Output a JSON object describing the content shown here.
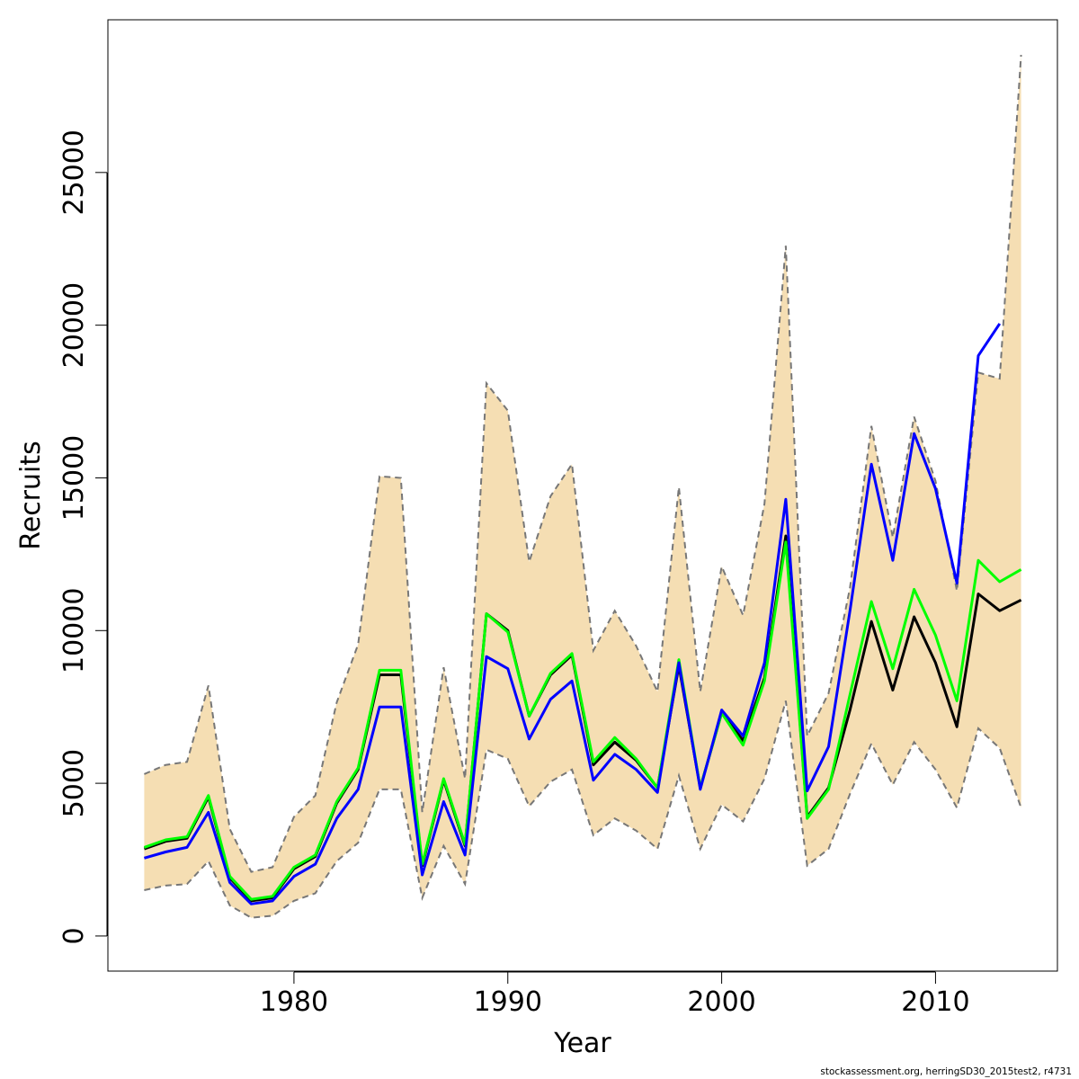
{
  "chart_data": {
    "type": "line",
    "title": "",
    "xlabel": "Year",
    "ylabel": "Recruits",
    "xlim": [
      1971.3,
      1975.6
    ],
    "ylim": [
      -1150,
      30000
    ],
    "x_ticks": [
      1980,
      1990,
      2000,
      2010
    ],
    "y_ticks": [
      0,
      5000,
      10000,
      15000,
      20000,
      25000
    ],
    "grid": false,
    "legend": "none",
    "x": [
      1973,
      1974,
      1975,
      1976,
      1977,
      1978,
      1979,
      1980,
      1981,
      1982,
      1983,
      1984,
      1985,
      1986,
      1987,
      1988,
      1989,
      1990,
      1991,
      1992,
      1993,
      1994,
      1995,
      1996,
      1997,
      1998,
      1999,
      2000,
      2001,
      2002,
      2003,
      2004,
      2005,
      2006,
      2007,
      2008,
      2009,
      2010,
      2011,
      2012,
      2013,
      2014
    ],
    "band": {
      "upper": [
        5300,
        5600,
        5700,
        8200,
        3500,
        2100,
        2250,
        3900,
        4600,
        7650,
        9550,
        15050,
        15000,
        4050,
        8800,
        5150,
        18100,
        17200,
        12250,
        14400,
        15450,
        9350,
        10650,
        9500,
        8000,
        14700,
        8000,
        12100,
        10500,
        14150,
        22600,
        6550,
        7950,
        11400,
        16700,
        13050,
        17000,
        14900,
        11300,
        18450,
        18250,
        28850
      ],
      "lower": [
        1500,
        1650,
        1700,
        2450,
        1000,
        600,
        660,
        1150,
        1400,
        2450,
        3050,
        4800,
        4800,
        1250,
        2950,
        1700,
        6100,
        5800,
        4250,
        5050,
        5450,
        3300,
        3850,
        3450,
        2850,
        5250,
        2850,
        4300,
        3750,
        5150,
        7700,
        2300,
        2850,
        4650,
        6300,
        4950,
        6350,
        5450,
        4200,
        6800,
        6150,
        4200
      ],
      "fill": "#f5deb3",
      "edge": "#777777"
    },
    "series": [
      {
        "color": "#000000",
        "values": [
          2850,
          3100,
          3200,
          4550,
          1900,
          1150,
          1250,
          2200,
          2600,
          4350,
          5450,
          8550,
          8550,
          2300,
          5100,
          2950,
          10550,
          10000,
          7200,
          8550,
          9200,
          5600,
          6350,
          5750,
          4850,
          8850,
          4850,
          7300,
          6400,
          8450,
          13100,
          3900,
          4850,
          7400,
          10300,
          8050,
          10450,
          8950,
          6850,
          11200,
          10650,
          11000
        ]
      },
      {
        "color": "#00ff00",
        "values": [
          2900,
          3150,
          3250,
          4600,
          1950,
          1200,
          1300,
          2250,
          2650,
          4400,
          5500,
          8700,
          8700,
          2350,
          5150,
          3000,
          10550,
          9950,
          7200,
          8600,
          9250,
          5700,
          6500,
          5800,
          4850,
          9050,
          4850,
          7300,
          6250,
          8350,
          12900,
          3850,
          4800,
          7900,
          10950,
          8750,
          11350,
          9850,
          7700,
          12300,
          11600,
          12000
        ]
      },
      {
        "color": "#0000ff",
        "values": [
          2550,
          2750,
          2900,
          4050,
          1750,
          1050,
          1150,
          1950,
          2350,
          3850,
          4800,
          7500,
          7500,
          2000,
          4400,
          2650,
          9150,
          8750,
          6450,
          7750,
          8350,
          5100,
          5950,
          5450,
          4700,
          8950,
          4800,
          7400,
          6550,
          8950,
          14300,
          4750,
          6200,
          10650,
          15450,
          12300,
          16450,
          14650,
          11550,
          19000,
          20050,
          null
        ]
      }
    ]
  },
  "footer": "stockassessment.org, herringSD30_2015test2, r4731"
}
